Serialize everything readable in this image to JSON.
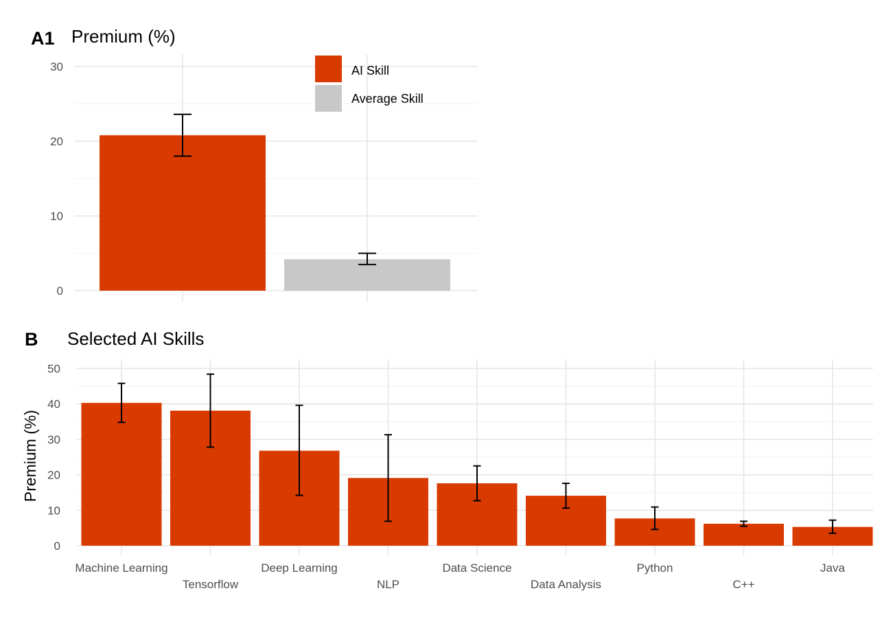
{
  "panel_a": {
    "tag": "A1",
    "title": "Premium (%)",
    "legend": [
      "AI Skill",
      "Average Skill"
    ]
  },
  "panel_b": {
    "tag": "B",
    "title": "Selected AI Skills",
    "ylabel": "Premium (%)"
  },
  "colors": {
    "ai": "#D93A00",
    "avg": "#C8C8C8",
    "grid": "#E8E8E8"
  },
  "chart_data": [
    {
      "type": "bar",
      "title": "Premium (%)",
      "categories": [
        "AI Skill",
        "Average Skill"
      ],
      "values": [
        20.8,
        4.2
      ],
      "error_low": [
        18.0,
        3.5
      ],
      "error_high": [
        23.6,
        5.0
      ],
      "ylim": [
        0,
        30
      ],
      "yticks": [
        0,
        10,
        20,
        30
      ],
      "legend": {
        "entries": [
          "AI Skill",
          "Average Skill"
        ],
        "placement": "top-right"
      },
      "grid": true
    },
    {
      "type": "bar",
      "title": "Selected AI Skills",
      "ylabel": "Premium (%)",
      "categories": [
        "Machine Learning",
        "Tensorflow",
        "Deep Learning",
        "NLP",
        "Data Science",
        "Data Analysis",
        "Python",
        "C++",
        "Java"
      ],
      "values": [
        40.3,
        38.1,
        26.8,
        19.1,
        17.6,
        14.1,
        7.7,
        6.2,
        5.3
      ],
      "error_low": [
        34.8,
        27.8,
        14.2,
        6.9,
        12.7,
        10.6,
        4.6,
        5.5,
        3.5
      ],
      "error_high": [
        45.8,
        48.4,
        39.6,
        31.3,
        22.5,
        17.6,
        10.9,
        6.9,
        7.2
      ],
      "ylim": [
        0,
        50
      ],
      "yticks": [
        0,
        10,
        20,
        30,
        40,
        50
      ],
      "grid": true
    }
  ]
}
